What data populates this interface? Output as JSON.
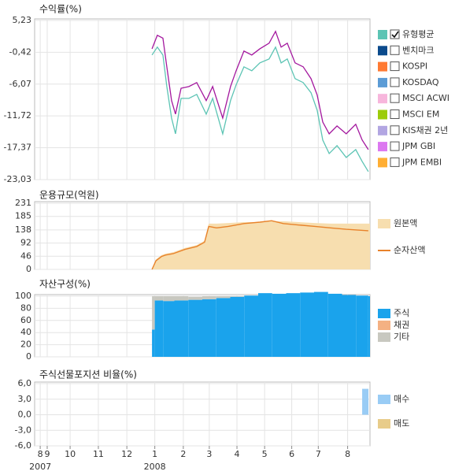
{
  "chart_data": [
    {
      "type": "line",
      "title": "수익률(%)",
      "ylim": [
        -23.03,
        5.23
      ],
      "yticks": [
        {
          "value": 5.23,
          "label": "5,23"
        },
        {
          "value": -0.42,
          "label": "-0,42"
        },
        {
          "value": -6.07,
          "label": "-6,07"
        },
        {
          "value": -11.72,
          "label": "-11,72"
        },
        {
          "value": -17.37,
          "label": "-17,37"
        },
        {
          "value": -23.03,
          "label": "-23,03"
        }
      ],
      "series": [
        {
          "color": "#a3179e",
          "x": [
            4.2,
            4.39,
            4.59,
            4.73,
            4.9,
            5.04,
            5.24,
            5.52,
            5.8,
            6.14,
            6.37,
            6.73,
            7.01,
            7.21,
            7.49,
            7.77,
            8.06,
            8.39,
            8.62,
            8.82,
            9.04,
            9.32,
            9.61,
            9.89,
            10.11,
            10.31,
            10.54,
            10.82,
            11.15,
            11.49,
            11.72,
            11.94
          ],
          "values": [
            0.2,
            2.6,
            2.1,
            -3,
            -9,
            -11.4,
            -6.8,
            -6.5,
            -5.8,
            -9,
            -6.5,
            -12.1,
            -6.5,
            -3.7,
            -0.2,
            -0.9,
            0.2,
            1.2,
            3.3,
            0.5,
            1.2,
            -2.3,
            -3,
            -5.1,
            -8,
            -12.8,
            -14.9,
            -13.5,
            -14.9,
            -13.2,
            -16,
            -17.7
          ]
        },
        {
          "name": "유형평균",
          "color": "#5cc4b4",
          "checked": true,
          "x": [
            4.2,
            4.39,
            4.59,
            4.73,
            4.9,
            5.04,
            5.24,
            5.52,
            5.8,
            6.14,
            6.37,
            6.73,
            7.01,
            7.21,
            7.49,
            7.77,
            8.06,
            8.39,
            8.62,
            8.82,
            9.04,
            9.32,
            9.61,
            9.89,
            10.11,
            10.31,
            10.54,
            10.82,
            11.15,
            11.49,
            11.72,
            11.94
          ],
          "values": [
            -0.9,
            0.5,
            -0.9,
            -6.5,
            -12.1,
            -14.9,
            -8.6,
            -8.6,
            -7.9,
            -11.4,
            -8.6,
            -14.9,
            -9,
            -6.2,
            -3,
            -3.7,
            -2.3,
            -1.6,
            0.5,
            -2.3,
            -1.6,
            -5.1,
            -5.8,
            -7.6,
            -10.7,
            -16,
            -18.4,
            -17,
            -19.1,
            -17.7,
            -19.8,
            -21.6
          ]
        }
      ],
      "benchmarks": [
        {
          "name": "벤치마크",
          "color": "#0b4a8c",
          "checked": false
        },
        {
          "name": "KOSPI",
          "color": "#ff7a33",
          "checked": false
        },
        {
          "name": "KOSDAQ",
          "color": "#5b9bd5",
          "checked": false
        },
        {
          "name": "MSCI ACWI",
          "color": "#f7b6dc",
          "checked": false
        },
        {
          "name": "MSCI EM",
          "color": "#9ccc0a",
          "checked": false
        },
        {
          "name": "KIS채권 2년",
          "color": "#b2a6e2",
          "checked": false
        },
        {
          "name": "JPM GBI",
          "color": "#dc78f0",
          "checked": false
        },
        {
          "name": "JPM EMBI",
          "color": "#ffae33",
          "checked": false
        }
      ]
    },
    {
      "type": "area-line",
      "title": "운용규모(억원)",
      "ylim": [
        0,
        231
      ],
      "yticks": [
        0,
        46,
        92,
        138,
        185,
        231
      ],
      "series": [
        {
          "name": "원본액",
          "color": "#f7deaf",
          "kind": "area",
          "x": [
            4.2,
            4.34,
            4.54,
            4.68,
            4.96,
            5.38,
            5.8,
            6.08,
            6.23,
            6.51,
            6.93,
            7.49,
            8.06,
            8.48,
            8.9,
            9.46,
            10.03,
            10.59,
            11.15,
            11.94
          ],
          "values": [
            0,
            35,
            50,
            55,
            60,
            75,
            85,
            100,
            160,
            160,
            162,
            165,
            165,
            168,
            168,
            165,
            162,
            160,
            160,
            160
          ]
        },
        {
          "name": "순자산액",
          "color": "#e8822a",
          "kind": "line",
          "x": [
            4.2,
            4.34,
            4.54,
            4.68,
            4.96,
            5.38,
            5.8,
            6.08,
            6.23,
            6.51,
            6.93,
            7.49,
            8.06,
            8.48,
            8.9,
            9.46,
            10.03,
            10.59,
            11.15,
            11.94
          ],
          "values": [
            0,
            30,
            45,
            50,
            55,
            70,
            80,
            95,
            150,
            145,
            150,
            160,
            165,
            170,
            160,
            155,
            150,
            145,
            140,
            135
          ]
        }
      ]
    },
    {
      "type": "stacked-bar",
      "title": "자산구성(%)",
      "ylim": [
        0,
        100
      ],
      "yticks": [
        0,
        20,
        40,
        60,
        80,
        100
      ],
      "x": [
        4.2,
        4.3,
        4.6,
        5.0,
        5.5,
        6.0,
        6.5,
        7.0,
        7.5,
        8.0,
        8.5,
        9.0,
        9.5,
        10.0,
        10.5,
        11.0,
        11.5,
        11.94
      ],
      "series": [
        {
          "name": "주식",
          "color": "#1aa3ec",
          "values": [
            45,
            93,
            92,
            93,
            94,
            95,
            97,
            99,
            101,
            105,
            104,
            105,
            106,
            107,
            104,
            102,
            101,
            100
          ]
        },
        {
          "name": "채권",
          "color": "#f4b183",
          "values": [
            0,
            0,
            0,
            0,
            0,
            0,
            0,
            0,
            0,
            0,
            0,
            0,
            0,
            0,
            0,
            0,
            0,
            0
          ]
        },
        {
          "name": "기타",
          "color": "#c8c8c0",
          "values": [
            55,
            7,
            8,
            7,
            5,
            5,
            3,
            1,
            0,
            0,
            0,
            0,
            0,
            0,
            0,
            0,
            0,
            0
          ]
        }
      ]
    },
    {
      "type": "bar",
      "title": "주식선물포지션 비율(%)",
      "ylim": [
        -6,
        6
      ],
      "yticks": [
        {
          "value": 6,
          "label": "6,0"
        },
        {
          "value": 3,
          "label": "3,0"
        },
        {
          "value": 0,
          "label": "0,0"
        },
        {
          "value": -3,
          "label": "-3,0"
        },
        {
          "value": -6,
          "label": "-6,0"
        }
      ],
      "series": [
        {
          "name": "매수",
          "color": "#99ccf5",
          "x": [
            11.72
          ],
          "values": [
            5
          ]
        },
        {
          "name": "매도",
          "color": "#e8cc8a",
          "x": [],
          "values": []
        }
      ],
      "xlim": [
        0,
        12
      ],
      "xticks": [
        {
          "value": 0.2,
          "label": "8"
        },
        {
          "value": 0.45,
          "label": "9"
        },
        {
          "value": 1.27,
          "label": "10"
        },
        {
          "value": 2.28,
          "label": "11"
        },
        {
          "value": 3.3,
          "label": "12"
        },
        {
          "value": 4.3,
          "label": "1"
        },
        {
          "value": 5.32,
          "label": "2"
        },
        {
          "value": 6.25,
          "label": "3"
        },
        {
          "value": 7.24,
          "label": "4"
        },
        {
          "value": 8.23,
          "label": "5"
        },
        {
          "value": 9.2,
          "label": "6"
        },
        {
          "value": 10.15,
          "label": "7"
        },
        {
          "value": 11.2,
          "label": "8"
        }
      ],
      "year_labels": [
        {
          "value": 0.2,
          "label": "2007"
        },
        {
          "value": 4.3,
          "label": "2008"
        }
      ]
    }
  ]
}
